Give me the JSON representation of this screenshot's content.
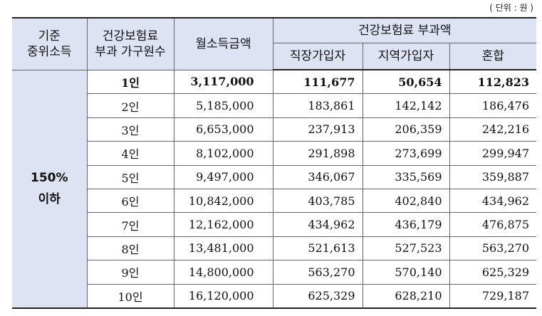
{
  "unit_note": "( 단위 : 원 )",
  "header": {
    "col1_line1": "기준",
    "col1_line2": "중위소득",
    "col2_line1": "건강보험료",
    "col2_line2": "부과 가구원수",
    "col3": "월소득금액",
    "group": "건강보험료 부과액",
    "sub1": "직장가입자",
    "sub2": "지역가입자",
    "sub3": "혼합"
  },
  "group_label_line1": "150%",
  "group_label_line2": "이하",
  "rows": [
    {
      "household": "1인",
      "income": "3,117,000",
      "employee": "111,677",
      "regional": "50,654",
      "mixed": "112,823"
    },
    {
      "household": "2인",
      "income": "5,185,000",
      "employee": "183,861",
      "regional": "142,142",
      "mixed": "186,476"
    },
    {
      "household": "3인",
      "income": "6,653,000",
      "employee": "237,913",
      "regional": "206,359",
      "mixed": "242,216"
    },
    {
      "household": "4인",
      "income": "8,102,000",
      "employee": "291,898",
      "regional": "273,699",
      "mixed": "299,947"
    },
    {
      "household": "5인",
      "income": "9,497,000",
      "employee": "346,067",
      "regional": "335,569",
      "mixed": "359,887"
    },
    {
      "household": "6인",
      "income": "10,842,000",
      "employee": "403,785",
      "regional": "402,840",
      "mixed": "434,962"
    },
    {
      "household": "7인",
      "income": "12,162,000",
      "employee": "434,962",
      "regional": "436,179",
      "mixed": "476,875"
    },
    {
      "household": "8인",
      "income": "13,481,000",
      "employee": "521,613",
      "regional": "527,523",
      "mixed": "563,270"
    },
    {
      "household": "9인",
      "income": "14,800,000",
      "employee": "563,270",
      "regional": "570,140",
      "mixed": "625,329"
    },
    {
      "household": "10인",
      "income": "16,120,000",
      "employee": "625,329",
      "regional": "628,210",
      "mixed": "729,187"
    }
  ],
  "colors": {
    "header_bg": "#dde3f3",
    "border": "#222222"
  }
}
